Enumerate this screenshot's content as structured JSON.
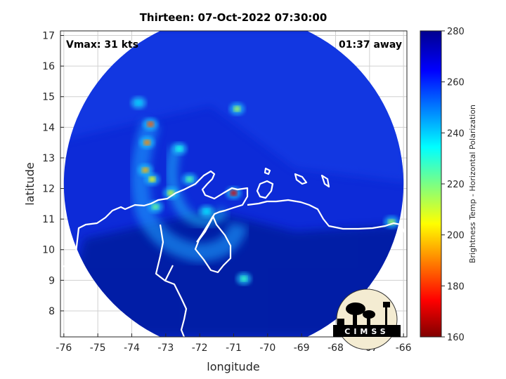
{
  "figure": {
    "title": "Thirteen: 07-Oct-2022 07:30:00",
    "vmax_text": "Vmax: 31 kts",
    "away_text": "01:37 away",
    "logo_text": "CIMSS"
  },
  "axes": {
    "xlabel": "longitude",
    "ylabel": "latitude",
    "xlim": [
      -76.1,
      -65.9
    ],
    "ylim": [
      7.15,
      17.15
    ],
    "x_ticks": [
      -76,
      -75,
      -74,
      -73,
      -72,
      -71,
      -70,
      -69,
      -68,
      -67,
      -66
    ],
    "y_ticks": [
      8,
      9,
      10,
      11,
      12,
      13,
      14,
      15,
      16,
      17
    ],
    "grid": true
  },
  "colorbar": {
    "label": "Brightness Temp - Horizontal Polarization",
    "min": 160,
    "max": 280,
    "ticks": [
      160,
      180,
      200,
      220,
      240,
      260,
      280
    ]
  },
  "colors": {
    "background": "#0a22c8",
    "coastline": "#ffffff"
  },
  "scene": {
    "swath_center": [
      -71.0,
      12.15
    ],
    "swath_radius_deg": 5.0,
    "warm_spots": [
      {
        "lon": -73.45,
        "lat": 14.1,
        "tb": 185
      },
      {
        "lon": -73.55,
        "lat": 13.5,
        "tb": 190
      },
      {
        "lon": -73.6,
        "lat": 12.6,
        "tb": 195
      },
      {
        "lon": -73.4,
        "lat": 12.3,
        "tb": 205
      },
      {
        "lon": -72.85,
        "lat": 11.85,
        "tb": 210
      },
      {
        "lon": -71.0,
        "lat": 11.85,
        "tb": 170
      },
      {
        "lon": -70.9,
        "lat": 14.6,
        "tb": 215
      },
      {
        "lon": -72.3,
        "lat": 12.3,
        "tb": 225
      },
      {
        "lon": -72.6,
        "lat": 13.3,
        "tb": 232
      },
      {
        "lon": -73.3,
        "lat": 11.4,
        "tb": 222
      },
      {
        "lon": -70.7,
        "lat": 9.05,
        "tb": 228
      },
      {
        "lon": -66.35,
        "lat": 10.9,
        "tb": 215
      },
      {
        "lon": -71.8,
        "lat": 11.25,
        "tb": 238
      },
      {
        "lon": -73.8,
        "lat": 14.8,
        "tb": 240
      }
    ]
  }
}
